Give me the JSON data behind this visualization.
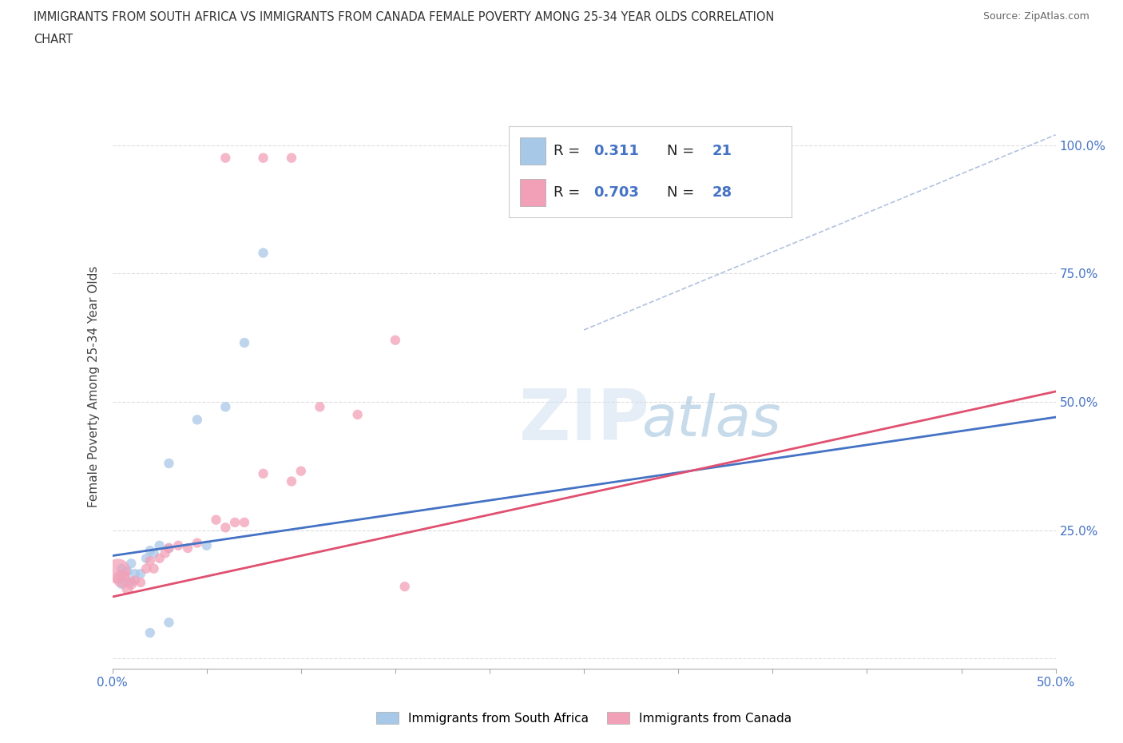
{
  "title_line1": "IMMIGRANTS FROM SOUTH AFRICA VS IMMIGRANTS FROM CANADA FEMALE POVERTY AMONG 25-34 YEAR OLDS CORRELATION",
  "title_line2": "CHART",
  "source": "Source: ZipAtlas.com",
  "ylabel": "Female Poverty Among 25-34 Year Olds",
  "xlim": [
    0,
    0.5
  ],
  "ylim": [
    -0.02,
    1.08
  ],
  "yticks": [
    0.0,
    0.25,
    0.5,
    0.75,
    1.0
  ],
  "ytick_labels": [
    "",
    "25.0%",
    "50.0%",
    "75.0%",
    "100.0%"
  ],
  "xtick_positions": [
    0.0,
    0.05,
    0.1,
    0.15,
    0.2,
    0.25,
    0.3,
    0.35,
    0.4,
    0.45,
    0.5
  ],
  "color_blue": "#a8c8e8",
  "color_pink": "#f2a0b8",
  "line_blue": "#4472c4",
  "line_pink": "#e05070",
  "line_dashed_color": "#aabbdd",
  "sa_points": [
    [
      0.005,
      0.175
    ],
    [
      0.005,
      0.155
    ],
    [
      0.005,
      0.145
    ],
    [
      0.008,
      0.17
    ],
    [
      0.01,
      0.185
    ],
    [
      0.01,
      0.15
    ],
    [
      0.012,
      0.165
    ],
    [
      0.015,
      0.165
    ],
    [
      0.018,
      0.195
    ],
    [
      0.02,
      0.21
    ],
    [
      0.022,
      0.205
    ],
    [
      0.025,
      0.22
    ],
    [
      0.03,
      0.215
    ],
    [
      0.03,
      0.38
    ],
    [
      0.045,
      0.465
    ],
    [
      0.05,
      0.22
    ],
    [
      0.06,
      0.49
    ],
    [
      0.07,
      0.615
    ],
    [
      0.08,
      0.79
    ],
    [
      0.02,
      0.05
    ],
    [
      0.03,
      0.07
    ]
  ],
  "sa_sizes": [
    80,
    80,
    80,
    80,
    80,
    80,
    80,
    80,
    80,
    80,
    80,
    80,
    80,
    80,
    80,
    80,
    80,
    80,
    80,
    80,
    80
  ],
  "canada_points": [
    [
      0.003,
      0.17
    ],
    [
      0.005,
      0.155
    ],
    [
      0.008,
      0.135
    ],
    [
      0.01,
      0.145
    ],
    [
      0.012,
      0.152
    ],
    [
      0.015,
      0.148
    ],
    [
      0.018,
      0.175
    ],
    [
      0.02,
      0.19
    ],
    [
      0.022,
      0.175
    ],
    [
      0.025,
      0.195
    ],
    [
      0.028,
      0.205
    ],
    [
      0.03,
      0.215
    ],
    [
      0.035,
      0.22
    ],
    [
      0.04,
      0.215
    ],
    [
      0.045,
      0.225
    ],
    [
      0.055,
      0.27
    ],
    [
      0.06,
      0.255
    ],
    [
      0.065,
      0.265
    ],
    [
      0.07,
      0.265
    ],
    [
      0.08,
      0.36
    ],
    [
      0.095,
      0.345
    ],
    [
      0.1,
      0.365
    ],
    [
      0.11,
      0.49
    ],
    [
      0.13,
      0.475
    ],
    [
      0.15,
      0.62
    ],
    [
      0.155,
      0.14
    ],
    [
      0.06,
      0.975
    ],
    [
      0.08,
      0.975
    ],
    [
      0.095,
      0.975
    ]
  ],
  "canada_sizes": [
    500,
    250,
    100,
    100,
    80,
    80,
    80,
    80,
    80,
    80,
    80,
    80,
    80,
    80,
    80,
    80,
    80,
    80,
    80,
    80,
    80,
    80,
    80,
    80,
    80,
    80,
    80,
    80,
    80
  ],
  "sa_line": [
    0.0,
    0.5,
    0.2,
    0.47
  ],
  "canada_line": [
    0.0,
    0.5,
    0.12,
    0.52
  ],
  "dashed_line": [
    0.25,
    0.5,
    0.64,
    1.02
  ]
}
